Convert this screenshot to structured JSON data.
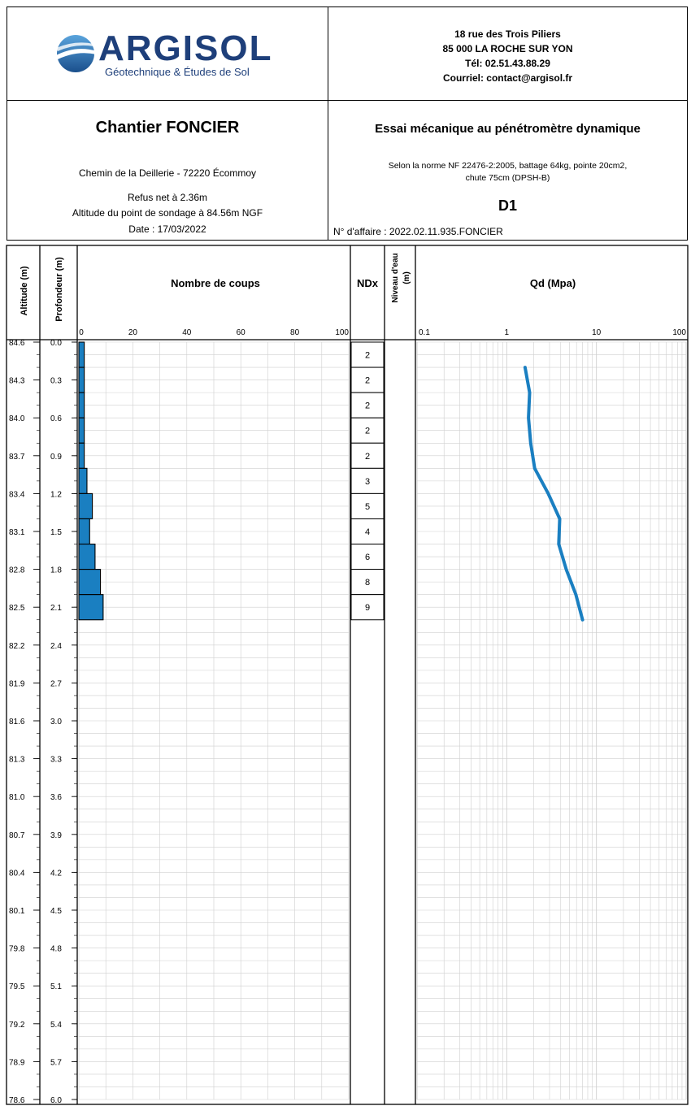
{
  "company": {
    "name": "ARGISOL",
    "tagline": "Géotechnique & Études de Sol",
    "address_line1": "18 rue des Trois Piliers",
    "address_line2": "85 000 LA ROCHE SUR YON",
    "phone": "Tél: 02.51.43.88.29",
    "email": "Courriel: contact@argisol.fr"
  },
  "site": {
    "title": "Chantier FONCIER",
    "location": "Chemin de la Deillerie - 72220 Écommoy",
    "refusal": "Refus net à 2.36m",
    "altitude": "Altitude du point de sondage à 84.56m NGF",
    "date": "Date :  17/03/2022"
  },
  "test": {
    "title": "Essai mécanique au pénétromètre dynamique",
    "norm_line1": "Selon la norme NF 22476-2:2005, battage 64kg, pointe 20cm2,",
    "norm_line2": "chute 75cm (DPSH-B)",
    "id": "D1",
    "case_number": "N° d'affaire : 2022.02.11.935.FONCIER"
  },
  "columns": {
    "altitude": "Altitude (m)",
    "depth": "Profondeur (m)",
    "blows": "Nombre de coups",
    "ndx": "NDx",
    "water_line1": "Niveau d'eau",
    "water_line2": "(m)",
    "qd": "Qd (Mpa)"
  },
  "colors": {
    "bar": "#1a7fc1",
    "line": "#1a7fc1",
    "grid": "#cfcfcf"
  },
  "chart_data": {
    "type": "bar",
    "depth_ticks": [
      "0.0",
      "0.3",
      "0.6",
      "0.9",
      "1.2",
      "1.5",
      "1.8",
      "2.1",
      "2.4",
      "2.7",
      "3.0",
      "3.3",
      "3.6",
      "3.9",
      "4.2",
      "4.5",
      "4.8",
      "5.1",
      "5.4",
      "5.7",
      "6.0"
    ],
    "altitude_ticks": [
      "84.6",
      "84.3",
      "84.0",
      "83.7",
      "83.4",
      "83.1",
      "82.8",
      "82.5",
      "82.2",
      "81.9",
      "81.6",
      "81.3",
      "81.0",
      "80.7",
      "80.4",
      "80.1",
      "79.8",
      "79.5",
      "79.2",
      "78.9",
      "78.6"
    ],
    "depth_range": [
      0,
      6
    ],
    "blows": {
      "xlabel": "Nombre de coups",
      "xlim": [
        0,
        100
      ],
      "x_ticks": [
        "0",
        "20",
        "40",
        "60",
        "80",
        "100"
      ],
      "depth_top": [
        0.0,
        0.2,
        0.4,
        0.6,
        0.8,
        1.0,
        1.2,
        1.4,
        1.6,
        1.8,
        2.0
      ],
      "depth_bottom": [
        0.2,
        0.4,
        0.6,
        0.8,
        1.0,
        1.2,
        1.4,
        1.6,
        1.8,
        2.0,
        2.2
      ],
      "values": [
        2,
        2,
        2,
        2,
        2,
        3,
        5,
        4,
        6,
        8,
        9
      ]
    },
    "qd": {
      "xlabel": "Qd (Mpa)",
      "scale": "log",
      "xlim": [
        0.1,
        100
      ],
      "x_ticks": [
        "0.1",
        "1",
        "10",
        "100"
      ],
      "depth": [
        0.2,
        0.4,
        0.6,
        0.8,
        1.0,
        1.2,
        1.4,
        1.6,
        1.8,
        2.0,
        2.2
      ],
      "values": [
        1.6,
        1.8,
        1.75,
        1.85,
        2.05,
        2.9,
        3.9,
        3.8,
        4.6,
        5.9,
        7.0
      ]
    }
  }
}
